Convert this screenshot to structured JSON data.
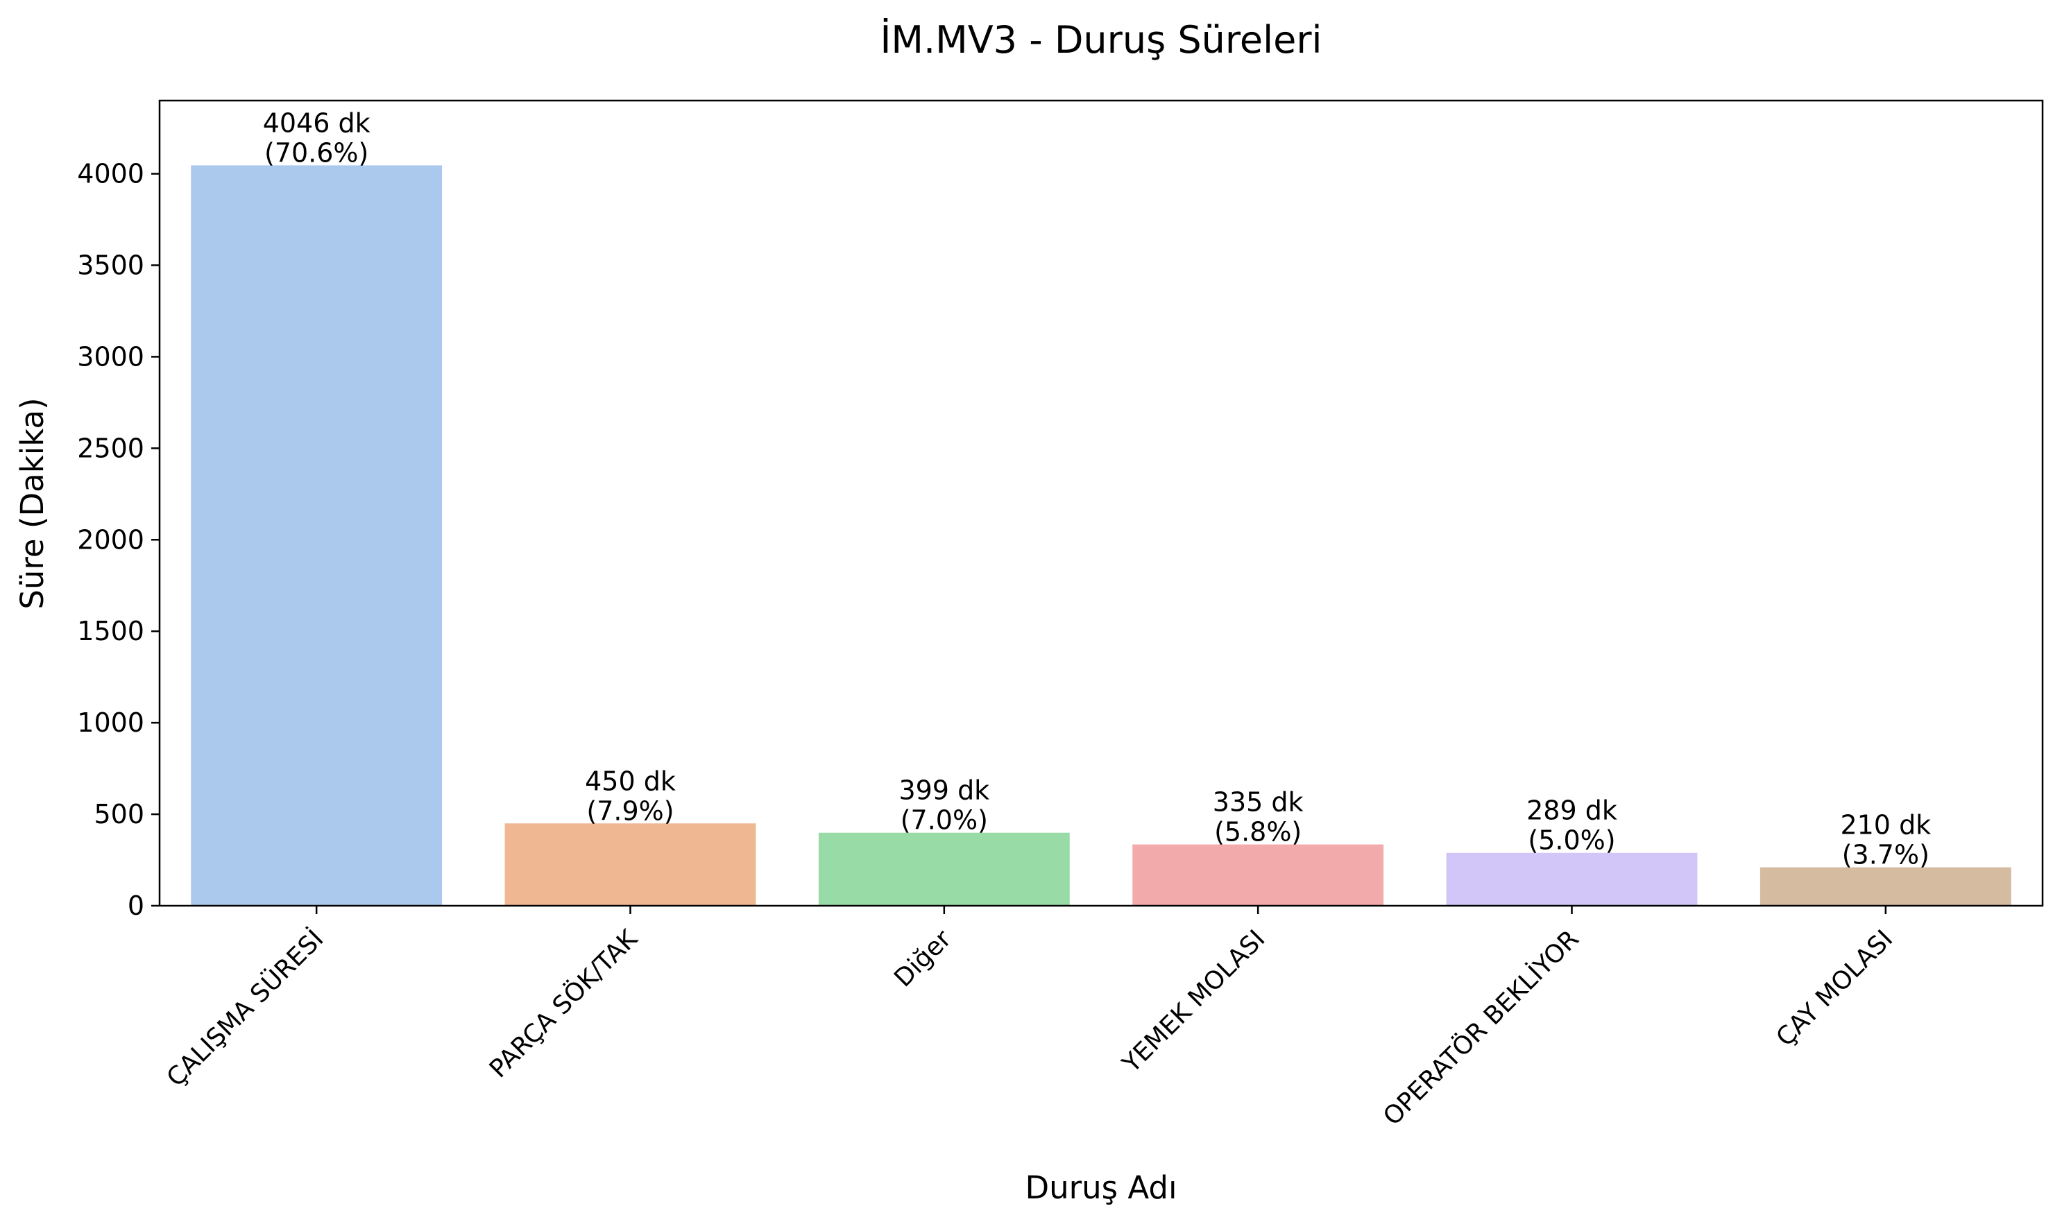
{
  "chart_data": {
    "type": "bar",
    "title": "İM.MV3 - Duruş Süreleri",
    "xlabel": "Duruş Adı",
    "ylabel": "Süre (Dakika)",
    "categories": [
      "ÇALIŞMA SÜRESİ",
      "PARÇA SÖK/TAK",
      "Diğer",
      "YEMEK MOLASI",
      "OPERATÖR BEKLİYOR",
      "ÇAY MOLASI"
    ],
    "values": [
      4046,
      450,
      399,
      335,
      289,
      210
    ],
    "bar_labels": [
      "4046 dk",
      "450 dk",
      "399 dk",
      "335 dk",
      "289 dk",
      "210 dk"
    ],
    "percent_labels": [
      "(70.6%)",
      "(7.9%)",
      "(7.0%)",
      "(5.8%)",
      "(5.0%)",
      "(3.7%)"
    ],
    "colors": [
      "#abc9ed",
      "#f0b892",
      "#98dba7",
      "#f2abaa",
      "#d2c5f7",
      "#d5bb9f"
    ],
    "yticks": [
      0,
      500,
      1000,
      1500,
      2000,
      2500,
      3000,
      3500,
      4000
    ],
    "ylim": [
      0,
      4400
    ],
    "grid": false,
    "legend": "none"
  }
}
